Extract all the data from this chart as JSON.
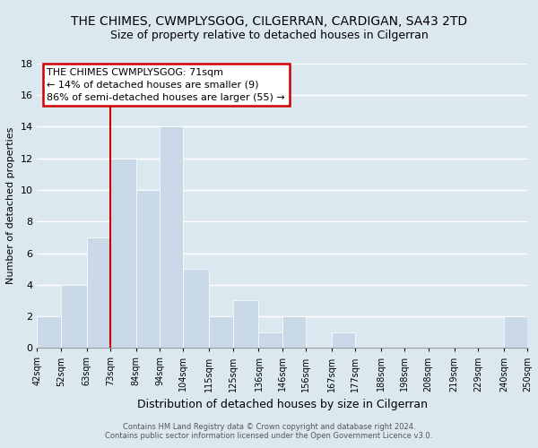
{
  "title": "THE CHIMES, CWMPLYSGOG, CILGERRAN, CARDIGAN, SA43 2TD",
  "subtitle": "Size of property relative to detached houses in Cilgerran",
  "xlabel": "Distribution of detached houses by size in Cilgerran",
  "ylabel": "Number of detached properties",
  "bins": [
    42,
    52,
    63,
    73,
    84,
    94,
    104,
    115,
    125,
    136,
    146,
    156,
    167,
    177,
    188,
    198,
    208,
    219,
    229,
    240,
    250
  ],
  "counts": [
    2,
    4,
    7,
    12,
    10,
    14,
    5,
    2,
    3,
    1,
    2,
    0,
    1,
    0,
    0,
    0,
    0,
    0,
    0,
    2
  ],
  "bar_color": "#c9d9e8",
  "grid_color": "#ffffff",
  "bg_color": "#dce8f0",
  "ylim": [
    0,
    18
  ],
  "yticks": [
    0,
    2,
    4,
    6,
    8,
    10,
    12,
    14,
    16,
    18
  ],
  "tick_labels": [
    "42sqm",
    "52sqm",
    "63sqm",
    "73sqm",
    "84sqm",
    "94sqm",
    "104sqm",
    "115sqm",
    "125sqm",
    "136sqm",
    "146sqm",
    "156sqm",
    "167sqm",
    "177sqm",
    "188sqm",
    "198sqm",
    "208sqm",
    "219sqm",
    "229sqm",
    "240sqm",
    "250sqm"
  ],
  "annotation_box_text": "THE CHIMES CWMPLYSGOG: 71sqm\n← 14% of detached houses are smaller (9)\n86% of semi-detached houses are larger (55) →",
  "vline_x": 73,
  "vline_color": "#cc0000",
  "footer1": "Contains HM Land Registry data © Crown copyright and database right 2024.",
  "footer2": "Contains public sector information licensed under the Open Government Licence v3.0.",
  "title_fontsize": 10,
  "subtitle_fontsize": 9,
  "ylabel_fontsize": 8,
  "xlabel_fontsize": 9,
  "ytick_fontsize": 8,
  "xtick_fontsize": 7,
  "footer_fontsize": 6,
  "ann_fontsize": 8
}
